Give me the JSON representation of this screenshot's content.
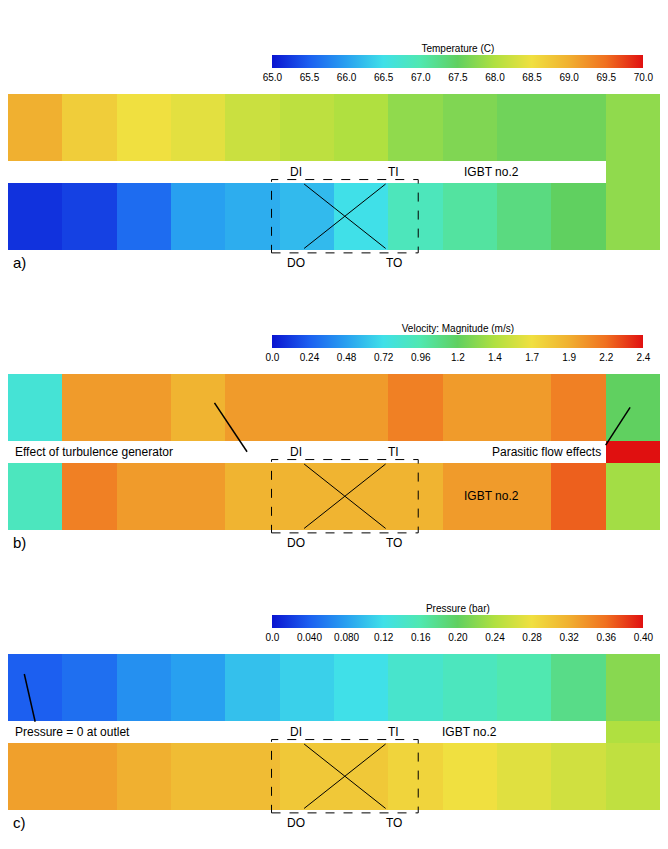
{
  "chart_data": [
    {
      "type": "heatmap",
      "title": "Temperature (C)",
      "panel_label": "a)",
      "tick_labels": false,
      "box_labels": [
        "DI",
        "TI",
        "DO",
        "TO"
      ],
      "component_label": "IGBT no.2",
      "notes": [],
      "cells": {
        "upper": [
          69.0,
          68.7,
          68.5,
          68.4,
          68.2,
          68.1,
          68.0,
          67.8,
          67.7,
          67.6,
          67.6,
          67.8
        ],
        "lower": [
          65.2,
          65.3,
          65.6,
          66.0,
          66.1,
          66.2,
          66.5,
          66.9,
          67.1,
          67.3,
          67.5,
          67.8
        ],
        "connection": 67.8
      },
      "colorbar_range": [
        65,
        70
      ],
      "colorbar_ticks": [
        {
          "value": 65,
          "label": "65.0"
        },
        {
          "value": 65.5,
          "label": "65.5"
        },
        {
          "value": 66,
          "label": "66.0"
        },
        {
          "value": 66.5,
          "label": "66.5"
        },
        {
          "value": 67,
          "label": "67.0"
        },
        {
          "value": 67.5,
          "label": "67.5"
        },
        {
          "value": 68,
          "label": "68.0"
        },
        {
          "value": 68.5,
          "label": "68.5"
        },
        {
          "value": 69,
          "label": "69.0"
        },
        {
          "value": 69.5,
          "label": "69.5"
        },
        {
          "value": 70,
          "label": "70.0"
        }
      ]
    },
    {
      "type": "heatmap",
      "title": "Velocity: Magnitude (m/s)",
      "panel_label": "b)",
      "tick_labels": false,
      "box_labels": [
        "DI",
        "TI",
        "DO",
        "TO"
      ],
      "component_label": "IGBT no.2",
      "notes": [
        "Effect of turbulence generator",
        "Parasitic flow effects"
      ],
      "cells": {
        "upper": [
          0.8,
          2.0,
          2.0,
          1.9,
          2.0,
          2.0,
          2.0,
          2.1,
          2.0,
          2.0,
          2.1,
          1.2
        ],
        "lower": [
          0.9,
          2.1,
          2.0,
          2.0,
          1.9,
          1.9,
          1.9,
          1.9,
          2.0,
          2.0,
          2.2,
          1.4
        ],
        "connection": 2.4
      },
      "colorbar_range": [
        0,
        2.4
      ],
      "colorbar_ticks": [
        {
          "value": 0,
          "label": "0.0"
        },
        0.24,
        0.48,
        0.72,
        0.96,
        1.2,
        {
          "value": 1.44,
          "label": "1.4"
        },
        {
          "value": 1.68,
          "label": "1.7"
        },
        {
          "value": 1.92,
          "label": "1.9"
        },
        {
          "value": 2.16,
          "label": "2.2"
        },
        2.4
      ]
    },
    {
      "type": "heatmap",
      "title": "Pressure (bar)",
      "panel_label": "c)",
      "tick_labels": false,
      "box_labels": [
        "DI",
        "TI",
        "DO",
        "TO"
      ],
      "component_label": "IGBT no.2",
      "notes": [
        "Pressure = 0 at outlet"
      ],
      "cells": {
        "upper": [
          0.04,
          0.05,
          0.07,
          0.08,
          0.1,
          0.11,
          0.12,
          0.14,
          0.15,
          0.16,
          0.18,
          0.22
        ],
        "lower": [
          0.33,
          0.33,
          0.32,
          0.31,
          0.31,
          0.3,
          0.3,
          0.29,
          0.28,
          0.27,
          0.26,
          0.25
        ],
        "connection": 0.24
      },
      "colorbar_range": [
        0,
        0.4
      ],
      "colorbar_ticks": [
        {
          "value": 0,
          "label": "0.0"
        },
        {
          "value": 0.04,
          "label": "0.040"
        },
        {
          "value": 0.08,
          "label": "0.080"
        },
        0.12,
        0.16,
        {
          "value": 0.2,
          "label": "0.20"
        },
        0.24,
        0.28,
        0.32,
        0.36,
        {
          "value": 0.4,
          "label": "0.40"
        }
      ]
    }
  ]
}
